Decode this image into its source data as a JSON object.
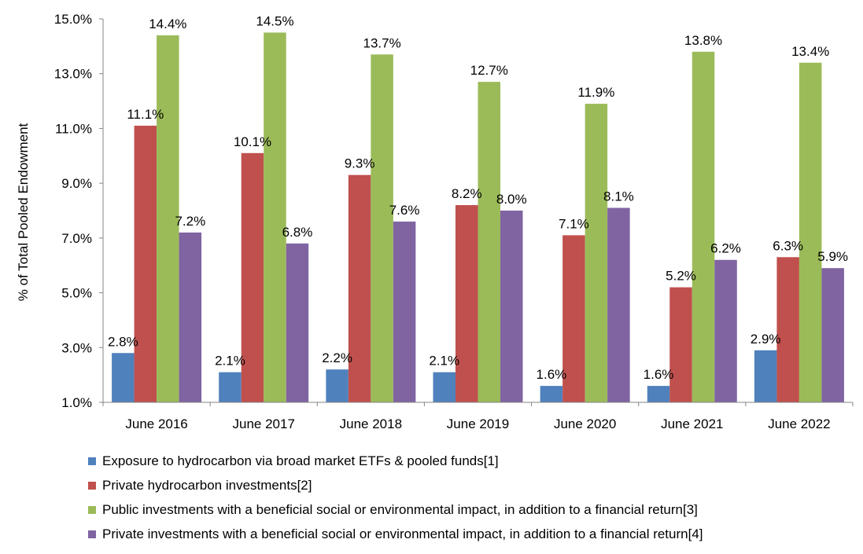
{
  "chart_data": {
    "type": "bar",
    "title": "",
    "xlabel": "",
    "ylabel": "% of Total Pooled Endowment",
    "ylim": [
      1.0,
      15.0
    ],
    "yticks": [
      "1.0%",
      "3.0%",
      "5.0%",
      "7.0%",
      "9.0%",
      "11.0%",
      "13.0%",
      "15.0%"
    ],
    "ytick_values": [
      1,
      3,
      5,
      7,
      9,
      11,
      13,
      15
    ],
    "categories": [
      "June 2016",
      "June 2017",
      "June 2018",
      "June 2019",
      "June 2020",
      "June 2021",
      "June 2022"
    ],
    "legend_position": "bottom",
    "series": [
      {
        "name": "Exposure to hydrocarbon via broad market ETFs & pooled funds[1]",
        "color": "#4F81BD",
        "values": [
          2.8,
          2.1,
          2.2,
          2.1,
          1.6,
          1.6,
          2.9
        ],
        "labels": [
          "2.8%",
          "2.1%",
          "2.2%",
          "2.1%",
          "1.6%",
          "1.6%",
          "2.9%"
        ]
      },
      {
        "name": "Private hydrocarbon investments[2]",
        "color": "#C0504D",
        "values": [
          11.1,
          10.1,
          9.3,
          8.2,
          7.1,
          5.2,
          6.3
        ],
        "labels": [
          "11.1%",
          "10.1%",
          "9.3%",
          "8.2%",
          "7.1%",
          "5.2%",
          "6.3%"
        ]
      },
      {
        "name": "Public investments with a beneficial social or environmental impact, in addition to a financial return[3]",
        "color": "#9BBB59",
        "values": [
          14.4,
          14.5,
          13.7,
          12.7,
          11.9,
          13.8,
          13.4
        ],
        "labels": [
          "14.4%",
          "14.5%",
          "13.7%",
          "12.7%",
          "11.9%",
          "13.8%",
          "13.4%"
        ]
      },
      {
        "name": "Private investments with a beneficial social or environmental impact, in addition to a financial return[4]",
        "color": "#8064A2",
        "values": [
          7.2,
          6.8,
          7.6,
          8.0,
          8.1,
          6.2,
          5.9
        ],
        "labels": [
          "7.2%",
          "6.8%",
          "7.6%",
          "8.0%",
          "8.1%",
          "6.2%",
          "5.9%"
        ]
      }
    ]
  }
}
